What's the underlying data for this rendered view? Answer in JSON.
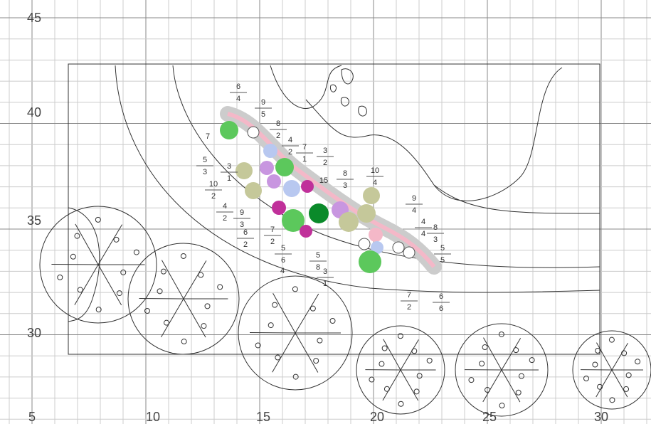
{
  "axes": {
    "y_labels": [
      "45",
      "40",
      "35",
      "30"
    ],
    "x_labels": [
      "5",
      "10",
      "15",
      "20",
      "25",
      "30"
    ]
  },
  "callouts": [
    {
      "lines": [
        "6",
        "4"
      ]
    },
    {
      "lines": [
        "9",
        "5"
      ]
    },
    {
      "lines": [
        "8",
        "2"
      ]
    },
    {
      "lines": [
        "7"
      ]
    },
    {
      "lines": [
        "4",
        "2"
      ]
    },
    {
      "lines": [
        "7",
        "1"
      ]
    },
    {
      "lines": [
        "5",
        "3"
      ]
    },
    {
      "lines": [
        "3",
        "1"
      ]
    },
    {
      "lines": [
        "3",
        "2"
      ]
    },
    {
      "lines": [
        "10",
        "2"
      ]
    },
    {
      "lines": [
        "15"
      ]
    },
    {
      "lines": [
        "8",
        "3"
      ]
    },
    {
      "lines": [
        "10",
        "4"
      ]
    },
    {
      "lines": [
        "4",
        "2"
      ]
    },
    {
      "lines": [
        "9",
        "3"
      ]
    },
    {
      "lines": [
        "6",
        "2"
      ]
    },
    {
      "lines": [
        "7",
        "2"
      ]
    },
    {
      "lines": [
        "9",
        "4"
      ]
    },
    {
      "lines": [
        "4",
        "4"
      ]
    },
    {
      "lines": [
        "8",
        "3"
      ]
    },
    {
      "lines": [
        "5",
        "6"
      ]
    },
    {
      "lines": [
        "5",
        "8"
      ]
    },
    {
      "lines": [
        "4"
      ]
    },
    {
      "lines": [
        "3",
        "1"
      ]
    },
    {
      "lines": [
        "5",
        "5"
      ]
    },
    {
      "lines": [
        "7",
        "2"
      ]
    },
    {
      "lines": [
        "6",
        "6"
      ]
    }
  ]
}
